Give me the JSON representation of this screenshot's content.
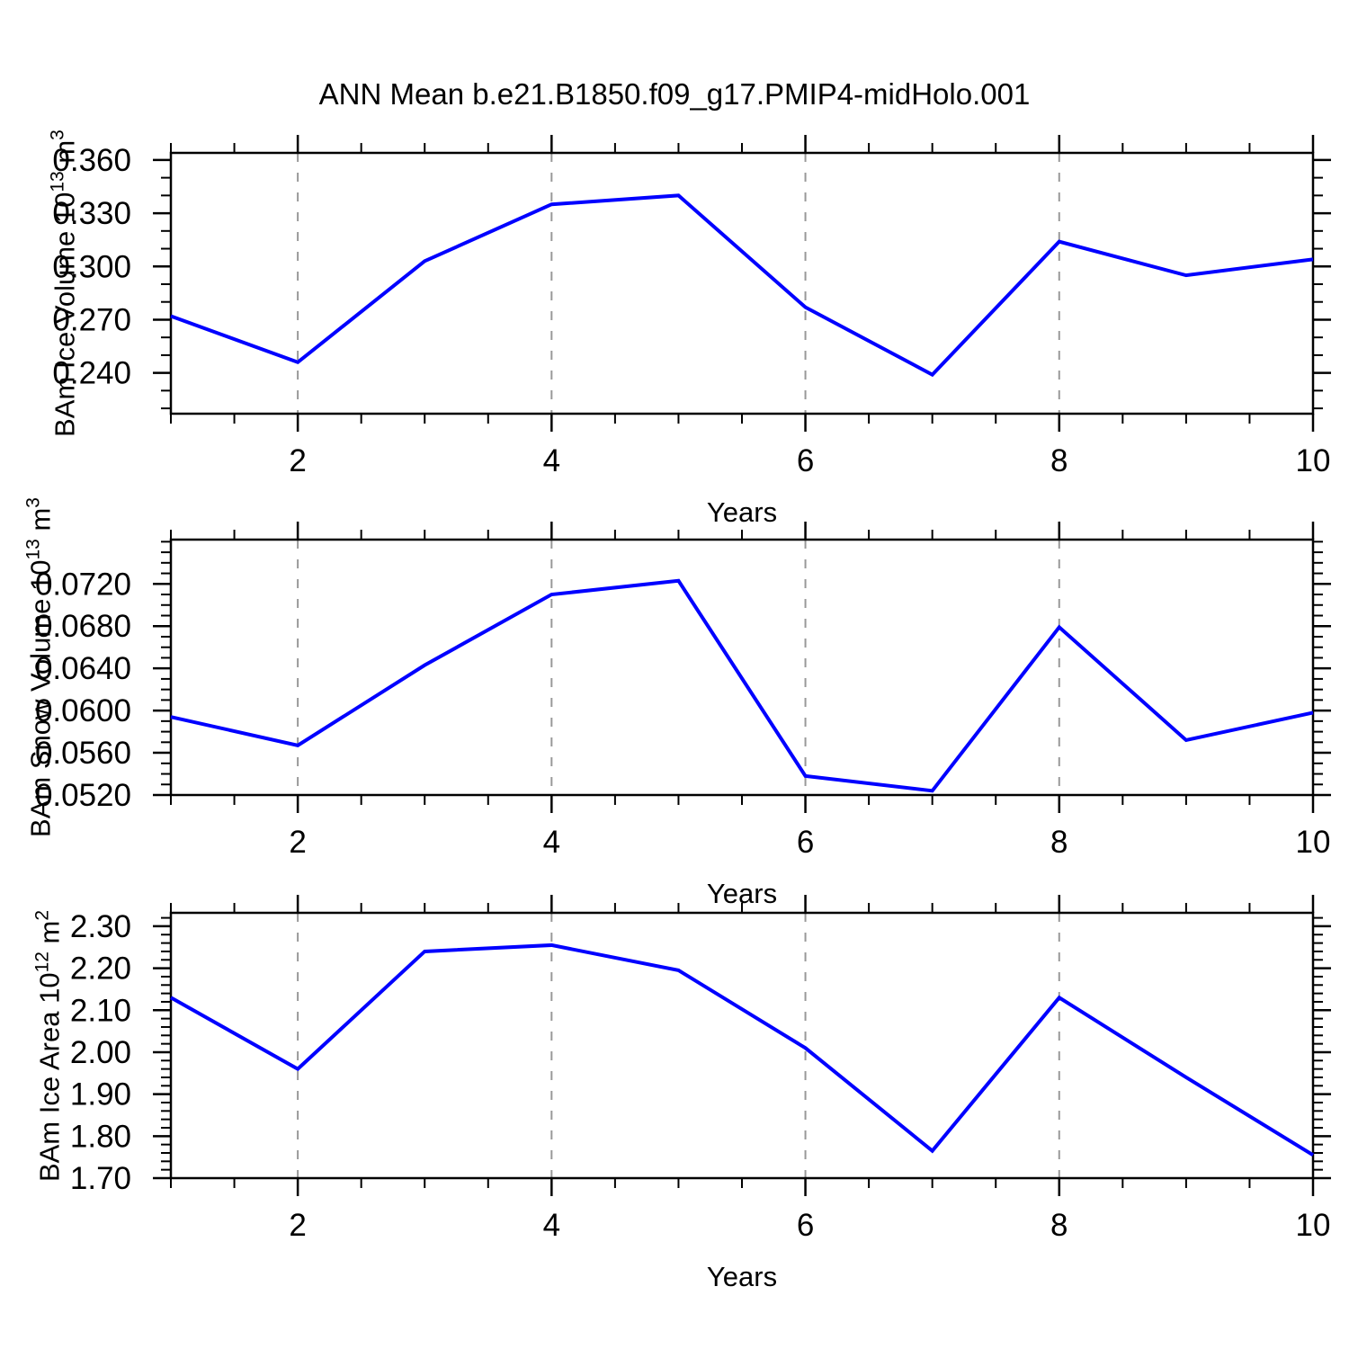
{
  "title": "ANN Mean b.e21.B1850.f09_g17.PMIP4-midHolo.001",
  "style": {
    "line_color": "#0000ff",
    "grid_color": "#999999",
    "axis_color": "#000000"
  },
  "chart_data": [
    {
      "type": "line",
      "name": "ice-volume",
      "ylabel_parts": [
        [
          "BAm Ice Volume 10",
          false
        ],
        [
          "13",
          true
        ],
        [
          " m",
          false
        ],
        [
          "3",
          true
        ]
      ],
      "xlabel": "Years",
      "x": [
        1,
        2,
        3,
        4,
        5,
        6,
        7,
        8,
        9,
        10
      ],
      "values": [
        0.272,
        0.246,
        0.303,
        0.335,
        0.34,
        0.277,
        0.239,
        0.314,
        0.295,
        0.304
      ],
      "xlim": [
        1,
        10
      ],
      "ylim": [
        0.217,
        0.364
      ],
      "xticks": [
        2,
        4,
        6,
        8,
        10
      ],
      "xtick_labels": [
        "2",
        "4",
        "6",
        "8",
        "10"
      ],
      "xtick_minor_step": 0.5,
      "yticks": [
        0.24,
        0.27,
        0.3,
        0.33,
        0.36
      ],
      "ytick_labels": [
        "0.240",
        "0.270",
        "0.300",
        "0.330",
        "0.360"
      ],
      "ytick_minor_step": 0.01,
      "grid_x": [
        2,
        4,
        6,
        8
      ],
      "grid_style": "dashed",
      "legend": null
    },
    {
      "type": "line",
      "name": "snow-volume",
      "ylabel_parts": [
        [
          "BAm Snow Volume 10",
          false
        ],
        [
          "13",
          true
        ],
        [
          " m",
          false
        ],
        [
          "3",
          true
        ]
      ],
      "xlabel": "Years",
      "x": [
        1,
        2,
        3,
        4,
        5,
        6,
        7,
        8,
        9,
        10
      ],
      "values": [
        0.0594,
        0.0567,
        0.0643,
        0.071,
        0.0723,
        0.0538,
        0.0524,
        0.0679,
        0.0572,
        0.0598
      ],
      "xlim": [
        1,
        10
      ],
      "ylim": [
        0.052,
        0.0762
      ],
      "xticks": [
        2,
        4,
        6,
        8,
        10
      ],
      "xtick_labels": [
        "2",
        "4",
        "6",
        "8",
        "10"
      ],
      "xtick_minor_step": 0.5,
      "yticks": [
        0.052,
        0.056,
        0.06,
        0.064,
        0.068,
        0.072
      ],
      "ytick_labels": [
        "0.0520",
        "0.0560",
        "0.0600",
        "0.0640",
        "0.0680",
        "0.0720"
      ],
      "ytick_minor_step": 0.001,
      "grid_x": [
        2,
        4,
        6,
        8
      ],
      "grid_style": "dashed",
      "legend": null
    },
    {
      "type": "line",
      "name": "ice-area",
      "ylabel_parts": [
        [
          "BAm Ice Area 10",
          false
        ],
        [
          "12",
          true
        ],
        [
          " m",
          false
        ],
        [
          "2",
          true
        ]
      ],
      "xlabel": "Years",
      "x": [
        1,
        2,
        3,
        4,
        5,
        6,
        7,
        8,
        9,
        10
      ],
      "values": [
        2.13,
        1.96,
        2.24,
        2.255,
        2.195,
        2.01,
        1.765,
        2.13,
        1.94,
        1.755
      ],
      "xlim": [
        1,
        10
      ],
      "ylim": [
        1.7,
        2.332
      ],
      "xticks": [
        2,
        4,
        6,
        8,
        10
      ],
      "xtick_labels": [
        "2",
        "4",
        "6",
        "8",
        "10"
      ],
      "xtick_minor_step": 0.5,
      "yticks": [
        1.7,
        1.8,
        1.9,
        2.0,
        2.1,
        2.2,
        2.3
      ],
      "ytick_labels": [
        "1.70",
        "1.80",
        "1.90",
        "2.00",
        "2.10",
        "2.20",
        "2.30"
      ],
      "ytick_minor_step": 0.02,
      "grid_x": [
        2,
        4,
        6,
        8
      ],
      "grid_style": "dashed",
      "legend": null
    }
  ]
}
